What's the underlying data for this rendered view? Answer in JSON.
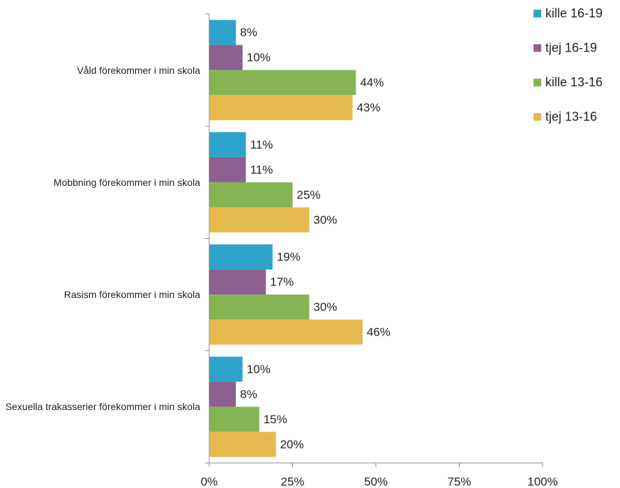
{
  "chart_data": {
    "type": "barh",
    "categories": [
      "Våld förekommer i min skola",
      "Mobbning förekommer i min skola",
      "Rasism förekommer i min skola",
      "Sexuella trakasserier förekommer i min skola"
    ],
    "series": [
      {
        "name": "kille 16-19",
        "color": "#2ea3c9",
        "values": [
          8,
          11,
          19,
          10
        ],
        "value_labels": [
          "8%",
          "11%",
          "19%",
          "10%"
        ]
      },
      {
        "name": "tjej 16-19",
        "color": "#8e5f8f",
        "values": [
          10,
          11,
          17,
          8
        ],
        "value_labels": [
          "10%",
          "11%",
          "17%",
          "8%"
        ]
      },
      {
        "name": "kille 13-16",
        "color": "#85b454",
        "values": [
          44,
          25,
          30,
          15
        ],
        "value_labels": [
          "44%",
          "25%",
          "30%",
          "15%"
        ]
      },
      {
        "name": "tjej 13-16",
        "color": "#e6b94f",
        "values": [
          43,
          30,
          46,
          20
        ],
        "value_labels": [
          "43%",
          "30%",
          "46%",
          "20%"
        ]
      }
    ],
    "xlim": [
      0,
      100
    ],
    "xticks": [
      {
        "value": 0,
        "label": "0%"
      },
      {
        "value": 25,
        "label": "25%"
      },
      {
        "value": 50,
        "label": "50%"
      },
      {
        "value": 75,
        "label": "75%"
      },
      {
        "value": 100,
        "label": "100%"
      }
    ],
    "legend": "top-right",
    "grid": false
  }
}
